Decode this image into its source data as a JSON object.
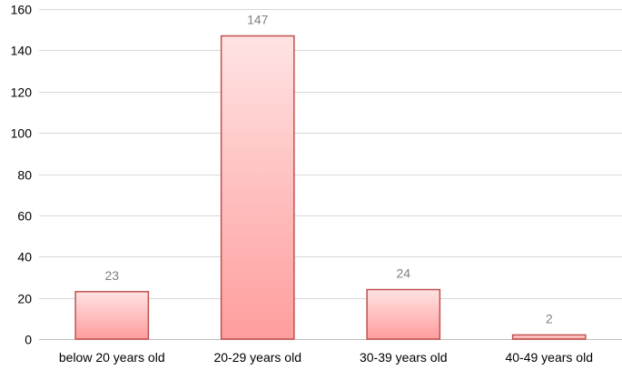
{
  "chart_data": {
    "type": "bar",
    "title": "",
    "xlabel": "",
    "ylabel": "",
    "categories": [
      "below 20 years old",
      "20-29 years old",
      "30-39 years old",
      "40-49 years old"
    ],
    "values": [
      23,
      147,
      24,
      2
    ],
    "data_labels": [
      "23",
      "147",
      "24",
      "2"
    ],
    "ylim": [
      0,
      160
    ],
    "yticks": [
      0,
      20,
      40,
      60,
      80,
      100,
      120,
      140,
      160
    ],
    "ytick_labels": [
      "0",
      "20",
      "40",
      "60",
      "80",
      "100",
      "120",
      "140",
      "160"
    ],
    "grid": true,
    "legend": "none",
    "colors": {
      "bar_top": "#ffe3e3",
      "bar_bottom": "#ff9d9d",
      "bar_stroke": "#c0504d",
      "grid": "#d9d9d9",
      "axis": "#bfbfbf",
      "data_label": "#808080"
    }
  }
}
